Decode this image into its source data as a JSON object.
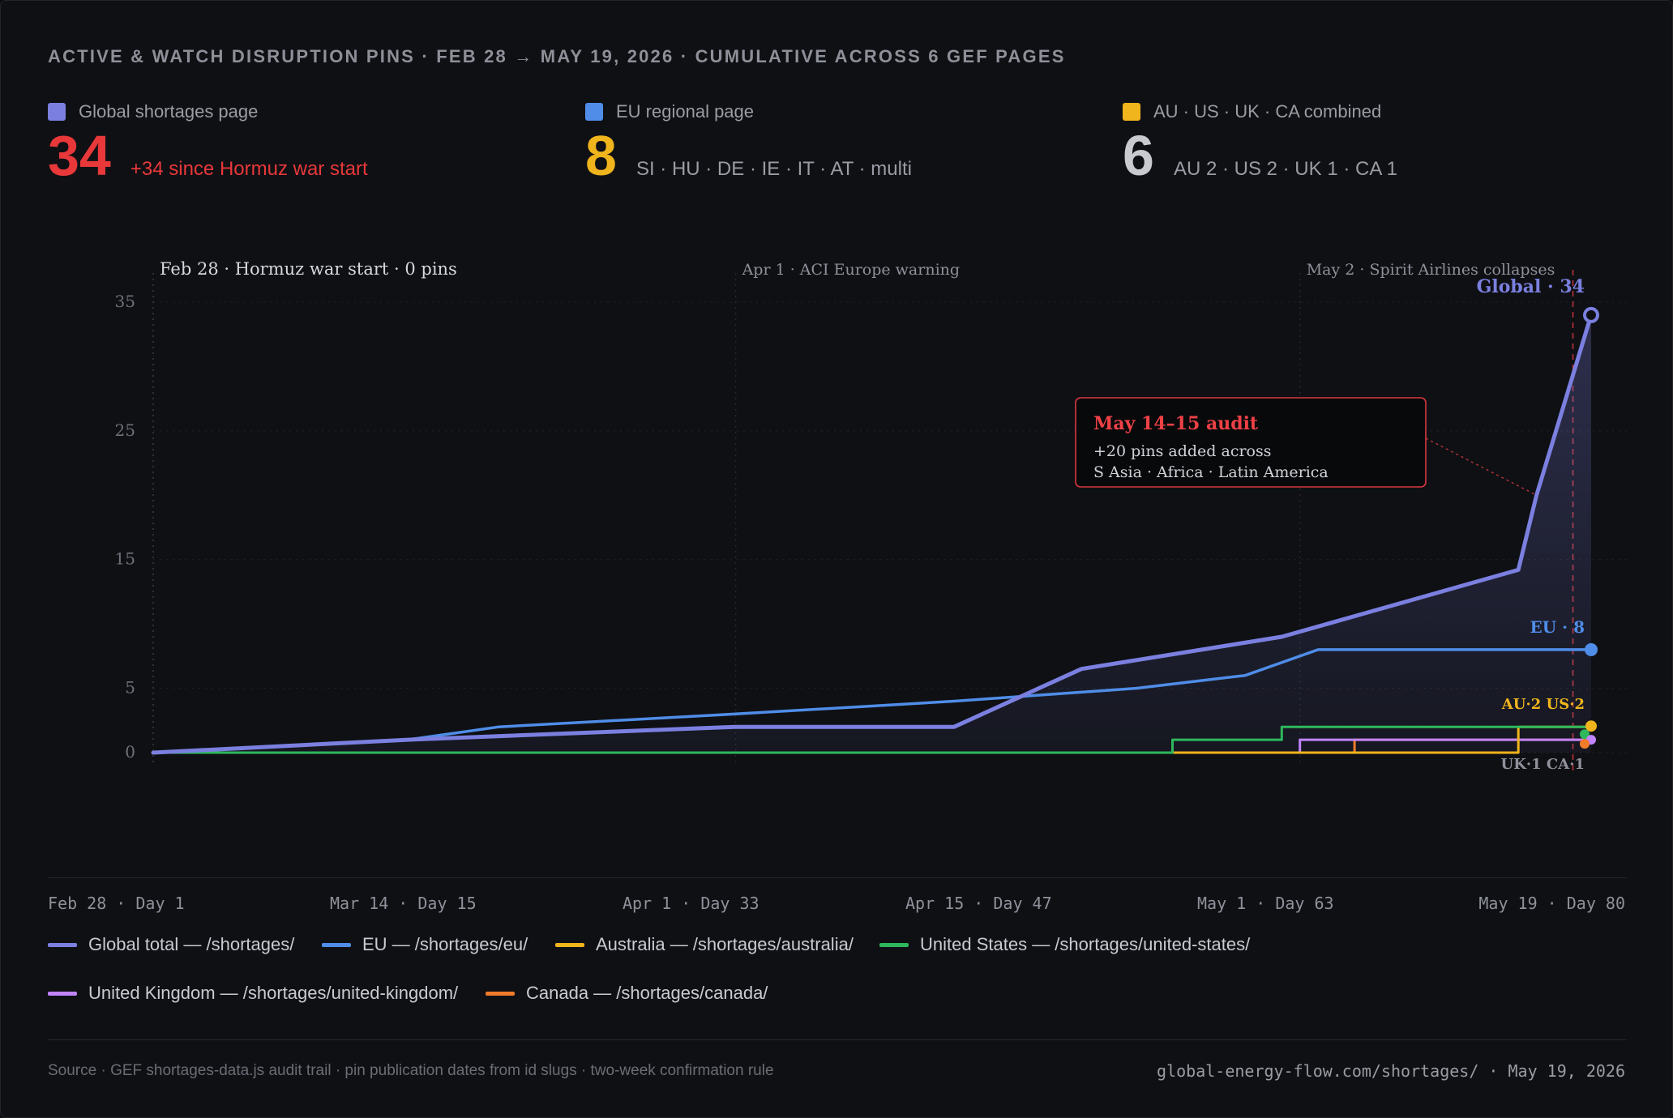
{
  "title": "ACTIVE & WATCH DISRUPTION PINS · FEB 28 → MAY 19, 2026 · CUMULATIVE ACROSS 6 GEF PAGES",
  "stats": [
    {
      "label": "Global shortages page",
      "value": "34",
      "note": "+34 since Hormuz war start",
      "swatch": "#7b80e0",
      "value_color": "#e8383a",
      "note_color": "#e8383a"
    },
    {
      "label": "EU regional page",
      "value": "8",
      "note": "SI · HU · DE · IE · IT · AT · multi",
      "swatch": "#4f8de8",
      "value_color": "#f0b41c",
      "note_color": "#9a9ca4"
    },
    {
      "label": "AU · US · UK · CA combined",
      "value": "6",
      "note": "AU 2 · US 2 · UK 1 · CA 1",
      "swatch": "#f0b41c",
      "value_color": "#c8cad0",
      "note_color": "#9a9ca4"
    }
  ],
  "chart_data": {
    "type": "line",
    "x_unit": "day",
    "xlim": [
      1,
      80
    ],
    "ylim": [
      0,
      35
    ],
    "y_ticks": [
      0,
      5,
      15,
      25,
      35
    ],
    "x_tick_labels": [
      {
        "day": 1,
        "label": "Feb 28 · Day 1"
      },
      {
        "day": 15,
        "label": "Mar 14 · Day 15"
      },
      {
        "day": 33,
        "label": "Apr 1 · Day 33"
      },
      {
        "day": 47,
        "label": "Apr 15 · Day 47"
      },
      {
        "day": 63,
        "label": "May 1 · Day 63"
      },
      {
        "day": 80,
        "label": "May 19 · Day 80"
      }
    ],
    "events": [
      {
        "day": 1,
        "label": "Feb 28 · Hormuz war start · 0 pins"
      },
      {
        "day": 33,
        "label": "Apr 1 · ACI Europe warning"
      },
      {
        "day": 64,
        "label": "May 2 · Spirit Airlines collapses"
      }
    ],
    "audit_marker_day": 79,
    "annotation": {
      "title": "May 14–15 audit",
      "lines": [
        "+20 pins added across",
        "S Asia · Africa · Latin America"
      ],
      "day": 77,
      "value": 20
    },
    "series": [
      {
        "name": "Global total — /shortages/",
        "color": "#7b80e0",
        "width": 5,
        "area": true,
        "points": [
          [
            1,
            0
          ],
          [
            15,
            1
          ],
          [
            33,
            2
          ],
          [
            45,
            2
          ],
          [
            52,
            6.5
          ],
          [
            63,
            9
          ],
          [
            76,
            14.2
          ],
          [
            77,
            20
          ],
          [
            80,
            34
          ]
        ]
      },
      {
        "name": "EU — /shortages/eu/",
        "color": "#4f8de8",
        "width": 3.5,
        "points": [
          [
            1,
            0
          ],
          [
            15,
            1
          ],
          [
            20,
            2
          ],
          [
            33,
            3
          ],
          [
            45,
            4
          ],
          [
            55,
            5
          ],
          [
            61,
            6
          ],
          [
            65,
            8
          ],
          [
            80,
            8
          ]
        ]
      },
      {
        "name": "Australia — /shortages/australia/",
        "color": "#f0b41c",
        "width": 3,
        "points": [
          [
            1,
            0
          ],
          [
            67,
            0
          ],
          [
            67,
            0
          ],
          [
            76,
            0
          ],
          [
            76,
            1
          ],
          [
            76,
            2
          ],
          [
            80,
            2
          ]
        ]
      },
      {
        "name": "United States — /shortages/united-states/",
        "color": "#2eb85c",
        "width": 3,
        "points": [
          [
            1,
            0
          ],
          [
            57,
            0
          ],
          [
            57,
            1
          ],
          [
            63,
            1
          ],
          [
            63,
            2
          ],
          [
            80,
            2
          ]
        ]
      },
      {
        "name": "United Kingdom — /shortages/united-kingdom/",
        "color": "#c084fc",
        "width": 3,
        "points": [
          [
            1,
            0
          ],
          [
            64,
            0
          ],
          [
            64,
            1
          ],
          [
            80,
            1
          ]
        ]
      },
      {
        "name": "Canada — /shortages/canada/",
        "color": "#f07c2a",
        "width": 3,
        "points": [
          [
            1,
            0
          ],
          [
            67,
            0
          ],
          [
            67,
            1
          ],
          [
            80,
            1
          ]
        ]
      }
    ],
    "end_labels": [
      {
        "text": "Global · 34",
        "color": "#7b80e0",
        "value": 34
      },
      {
        "text": "EU · 8",
        "color": "#4f8de8",
        "value": 8
      },
      {
        "text": "AU·2 US·2",
        "color": "#f0b41c",
        "value": 2
      },
      {
        "text": "UK·1 CA·1",
        "color": "#8f919a",
        "value": 1
      }
    ]
  },
  "legend": [
    {
      "label": "Global total — /shortages/",
      "color": "#7b80e0"
    },
    {
      "label": "EU — /shortages/eu/",
      "color": "#4f8de8"
    },
    {
      "label": "Australia — /shortages/australia/",
      "color": "#f0b41c"
    },
    {
      "label": "United States — /shortages/united-states/",
      "color": "#2eb85c"
    },
    {
      "label": "United Kingdom — /shortages/united-kingdom/",
      "color": "#c084fc"
    },
    {
      "label": "Canada — /shortages/canada/",
      "color": "#f07c2a"
    }
  ],
  "footer": {
    "source": "Source · GEF shortages-data.js audit trail · pin publication dates from id slugs · two-week confirmation rule",
    "site": "global-energy-flow.com/shortages/ · May 19, 2026"
  }
}
